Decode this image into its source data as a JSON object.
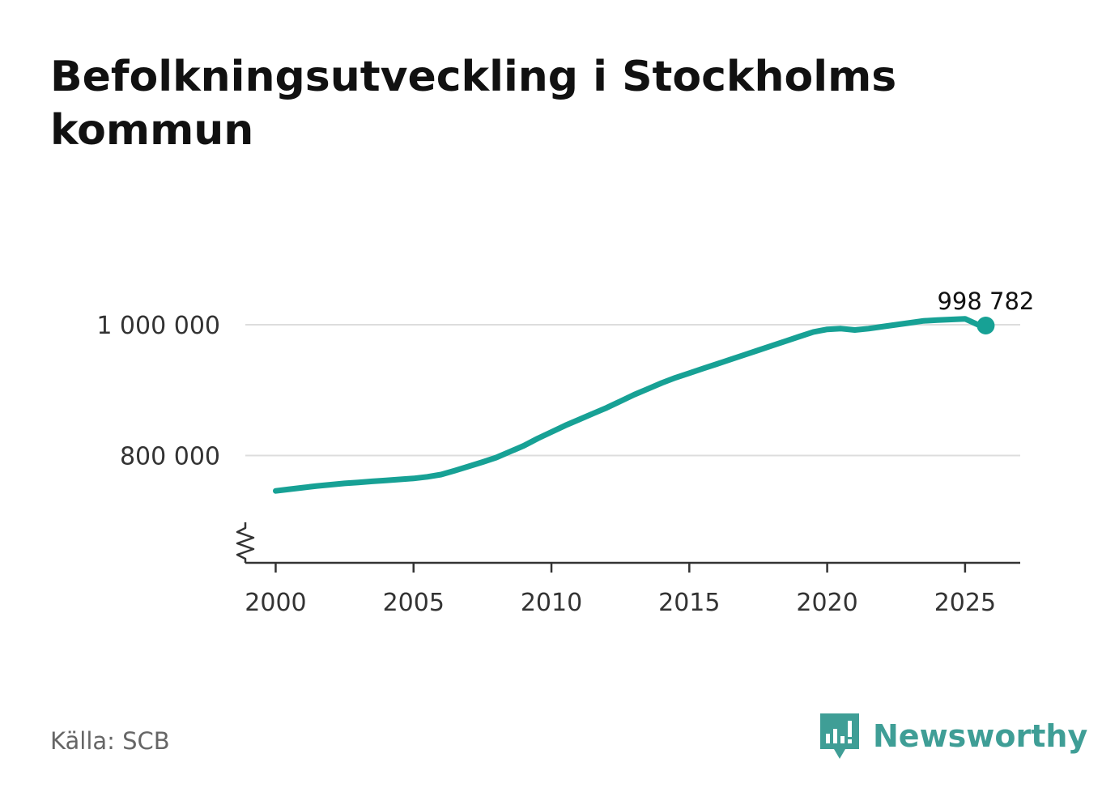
{
  "title": "Befolkningsutveckling i Stockholms kommun",
  "source": "Källa: SCB",
  "brand": {
    "name": "Newsworthy",
    "icon": "newsworthy-logo-icon",
    "color": "#3f9e96"
  },
  "chart_data": {
    "type": "line",
    "title": "Befolkningsutveckling i Stockholms kommun",
    "xlabel": "",
    "ylabel": "",
    "x": [
      2000.0,
      2000.5,
      2001.0,
      2001.5,
      2002.0,
      2002.5,
      2003.0,
      2003.5,
      2004.0,
      2004.5,
      2005.0,
      2005.5,
      2006.0,
      2006.5,
      2007.0,
      2007.5,
      2008.0,
      2008.5,
      2009.0,
      2009.5,
      2010.0,
      2010.5,
      2011.0,
      2011.5,
      2012.0,
      2012.5,
      2013.0,
      2013.5,
      2014.0,
      2014.5,
      2015.0,
      2015.5,
      2016.0,
      2016.5,
      2017.0,
      2017.5,
      2018.0,
      2018.5,
      2019.0,
      2019.5,
      2020.0,
      2020.5,
      2021.0,
      2021.5,
      2022.0,
      2022.5,
      2023.0,
      2023.5,
      2024.0,
      2024.5,
      2025.0,
      2025.5,
      2025.75
    ],
    "series": [
      {
        "name": "",
        "values": [
          746000,
          748500,
          751000,
          753500,
          755500,
          757500,
          759000,
          760500,
          762000,
          763500,
          765000,
          767500,
          771000,
          777000,
          783500,
          790000,
          797000,
          806000,
          815000,
          826000,
          836000,
          846000,
          855000,
          864000,
          873000,
          883000,
          893000,
          902000,
          911000,
          919000,
          926000,
          933000,
          940000,
          947000,
          954000,
          961000,
          968000,
          975000,
          982000,
          989000,
          993000,
          994000,
          992000,
          994000,
          997000,
          1000000,
          1003000,
          1006000,
          1007000,
          1008000,
          1009000,
          999500,
          998782
        ],
        "color": "#17a195"
      }
    ],
    "end_label": "998 782",
    "y_ticks": [
      {
        "value": 800000,
        "label": "800 000"
      },
      {
        "value": 1000000,
        "label": "1 000 000"
      }
    ],
    "x_ticks": [
      {
        "value": 2000,
        "label": "2000"
      },
      {
        "value": 2005,
        "label": "2005"
      },
      {
        "value": 2010,
        "label": "2010"
      },
      {
        "value": 2015,
        "label": "2015"
      },
      {
        "value": 2020,
        "label": "2020"
      },
      {
        "value": 2025,
        "label": "2025"
      }
    ],
    "xlim": [
      1998.9,
      2027.0
    ],
    "ylim": [
      636000,
      1000000
    ],
    "y_axis_break": true,
    "grid": true,
    "colors": {
      "line": "#17a195",
      "grid": "#dddddd",
      "axis": "#333333"
    }
  }
}
